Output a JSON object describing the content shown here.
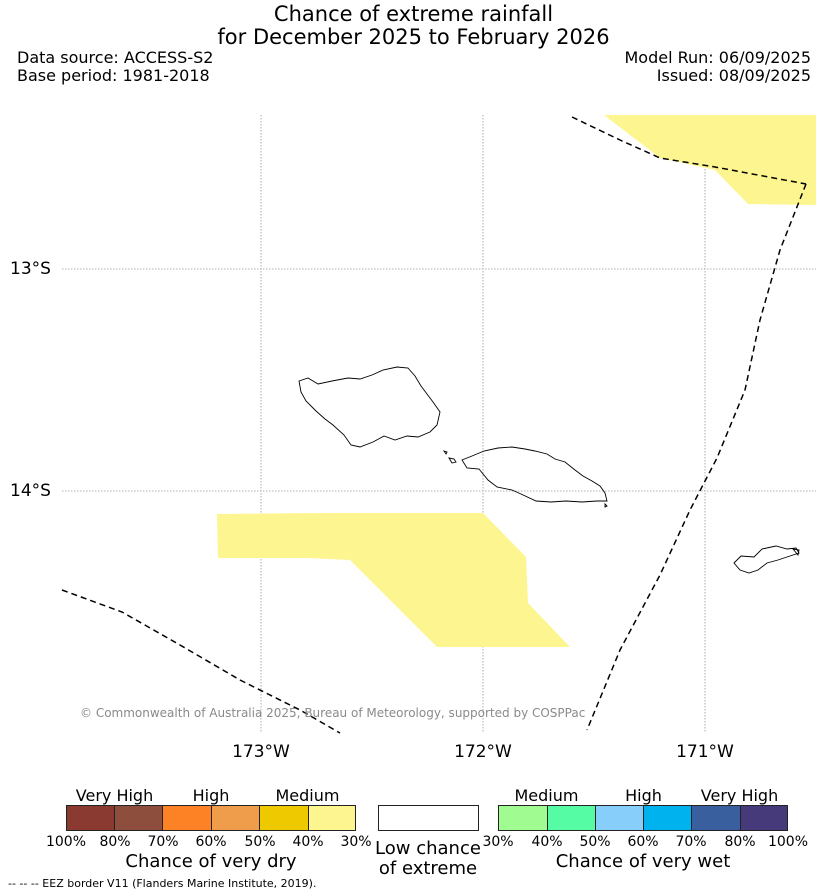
{
  "title_line1": "Chance of extreme rainfall",
  "title_line2": "for December 2025 to February 2026",
  "data_source": "Data source: ACCESS-S2",
  "base_period": "Base period: 1981-2018",
  "model_run": "Model Run: 06/09/2025",
  "issued": "Issued: 08/09/2025",
  "lat_labels": [
    "13°S",
    "14°S"
  ],
  "lon_labels": [
    "173°W",
    "172°W",
    "171°W"
  ],
  "copyright": "© Commonwealth of Australia 2025, Bureau of Meteorology, supported by COSPPac",
  "map_colors": {
    "medium_dry_region": "#fdf58f",
    "eez_border": "#000000",
    "coastline": "#000000",
    "gridline": "#999999"
  },
  "legend": {
    "dry": {
      "group_labels": [
        "Very High",
        "High",
        "Medium"
      ],
      "ticks": [
        "100%",
        "80%",
        "70%",
        "60%",
        "50%",
        "40%",
        "30%"
      ],
      "colors": [
        "#8b3a32",
        "#8e4e3e",
        "#fd8125",
        "#ef9d4a",
        "#eec900",
        "#fdf58f"
      ],
      "caption": "Chance of very dry"
    },
    "low": {
      "caption_line1": "Low chance",
      "caption_line2": "of extreme",
      "color": "#ffffff"
    },
    "wet": {
      "group_labels": [
        "Medium",
        "High",
        "Very High"
      ],
      "ticks": [
        "30%",
        "40%",
        "50%",
        "60%",
        "70%",
        "80%",
        "100%"
      ],
      "colors": [
        "#a0fb90",
        "#55fca4",
        "#88cefa",
        "#00b2ee",
        "#3a5f9e",
        "#463a7a"
      ],
      "caption": "Chance of very wet"
    }
  },
  "footnote": "--  --  -- EEZ border V11 (Flanders Marine Institute, 2019)."
}
